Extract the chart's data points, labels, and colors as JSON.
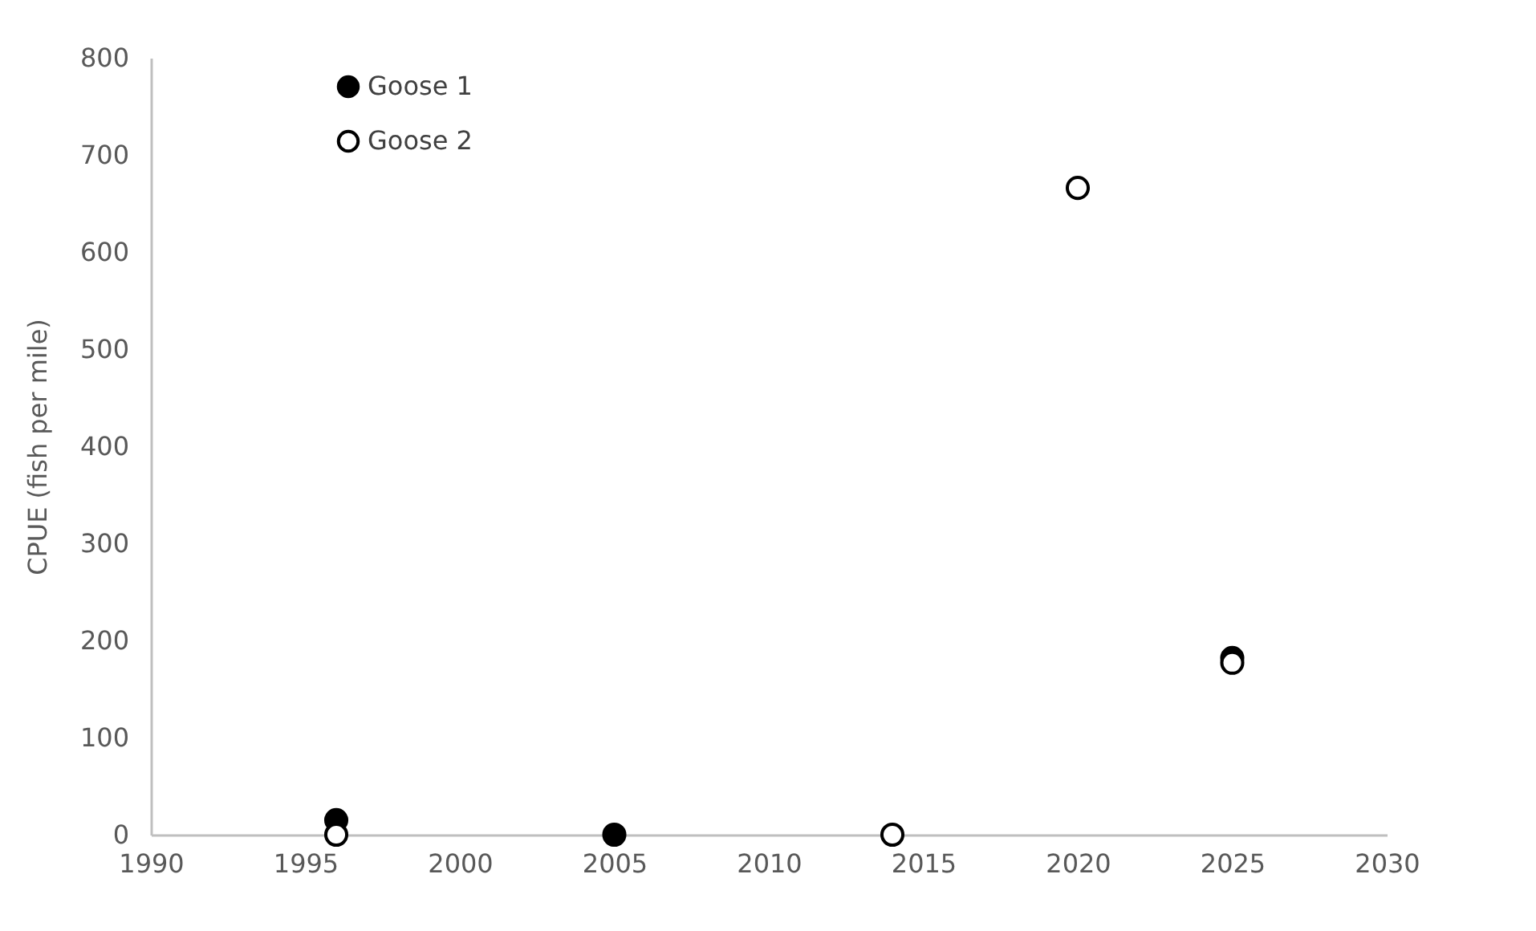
{
  "chart_data": {
    "type": "scatter",
    "ylabel": "CPUE (fish per mile)",
    "xlim": [
      1990,
      2030
    ],
    "xticks": [
      1990,
      1995,
      2000,
      2005,
      2010,
      2015,
      2020,
      2025,
      2030
    ],
    "ylim": [
      0,
      800
    ],
    "yticks": [
      0,
      100,
      200,
      300,
      400,
      500,
      600,
      700,
      800
    ],
    "grid": false,
    "legend": "top left",
    "marker": "circle",
    "series": [
      {
        "name": "Goose 1",
        "color": "#000000",
        "x": [
          1996,
          2005,
          2025
        ],
        "values": [
          15,
          0,
          182
        ]
      },
      {
        "name": "Goose 2",
        "color": "#ffffff",
        "x": [
          1996,
          2014,
          2020,
          2025
        ],
        "values": [
          0,
          0,
          666,
          177
        ]
      }
    ]
  }
}
